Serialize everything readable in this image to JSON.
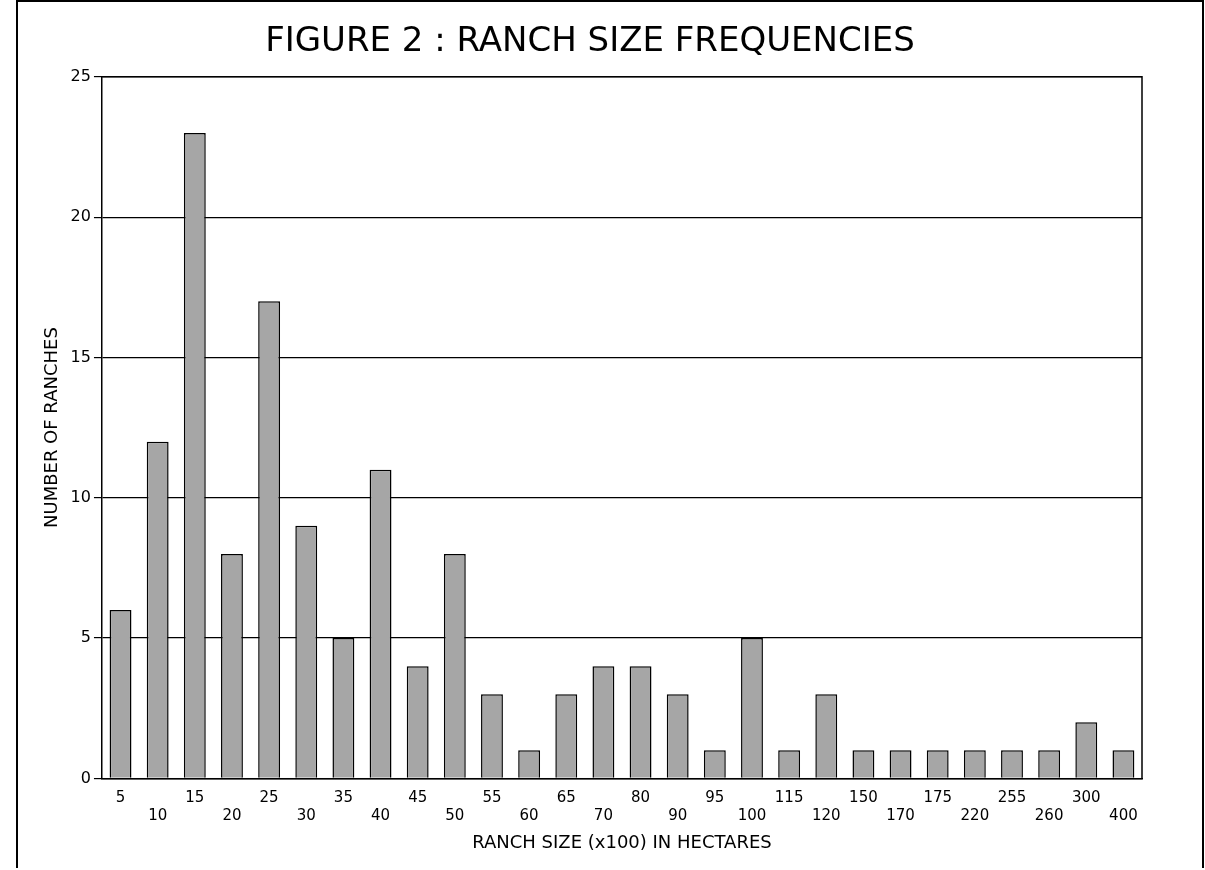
{
  "chart_data": {
    "type": "bar",
    "title": "FIGURE 2 : RANCH SIZE FREQUENCIES",
    "xlabel": "RANCH SIZE (x100) IN HECTARES",
    "ylabel": "NUMBER OF RANCHES",
    "categories": [
      "5",
      "10",
      "15",
      "20",
      "25",
      "30",
      "35",
      "40",
      "45",
      "50",
      "55",
      "60",
      "65",
      "70",
      "80",
      "90",
      "95",
      "100",
      "115",
      "120",
      "150",
      "170",
      "175",
      "220",
      "255",
      "260",
      "300",
      "400"
    ],
    "values": [
      6,
      12,
      23,
      8,
      17,
      9,
      5,
      11,
      4,
      8,
      3,
      1,
      3,
      4,
      4,
      3,
      1,
      5,
      1,
      3,
      1,
      1,
      1,
      1,
      1,
      1,
      2,
      1
    ],
    "color": "#a6a6a6",
    "ylim": [
      0,
      25
    ],
    "yticks": [
      0,
      5,
      10,
      15,
      20,
      25
    ],
    "grid": "y"
  }
}
